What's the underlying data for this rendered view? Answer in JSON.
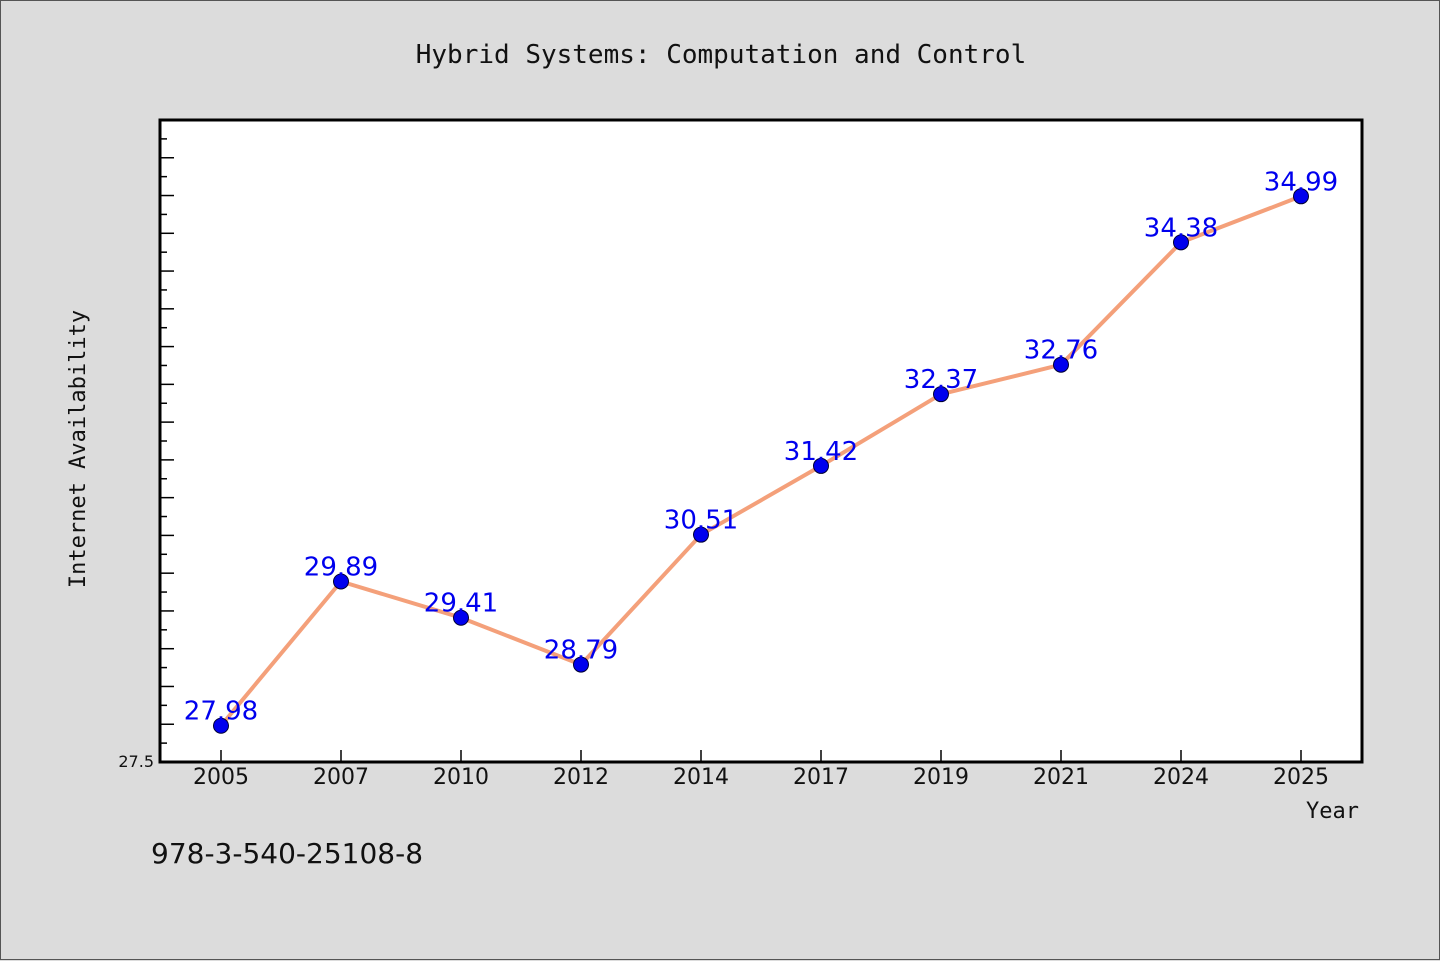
{
  "chart_data": {
    "type": "line",
    "title": "Hybrid Systems: Computation and Control",
    "xlabel": "Year",
    "ylabel": "Internet Availability",
    "categories": [
      "2005",
      "2007",
      "2010",
      "2012",
      "2014",
      "2017",
      "2019",
      "2021",
      "2024",
      "2025"
    ],
    "series": [
      {
        "values": [
          27.98,
          29.89,
          29.41,
          28.79,
          30.51,
          31.42,
          32.37,
          32.76,
          34.38,
          34.99
        ],
        "labels": [
          "27.98",
          "29.89",
          "29.41",
          "28.79",
          "30.51",
          "31.42",
          "32.37",
          "32.76",
          "34.38",
          "34.99"
        ]
      }
    ],
    "ylim": [
      27.5,
      36.0
    ],
    "y_tick_labels": [
      "27.5"
    ],
    "grid": false,
    "colors": {
      "line": "#f4a07a",
      "marker": "#0000ee",
      "label": "#0000ee"
    }
  },
  "footer": {
    "isbn": "978-3-540-25108-8"
  }
}
